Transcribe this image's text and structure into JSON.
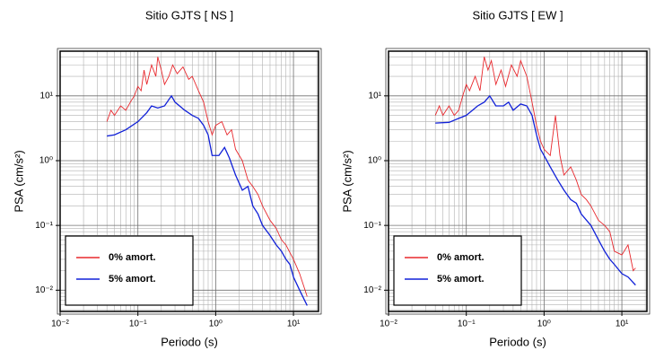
{
  "chart_data": [
    {
      "type": "line",
      "title": "Sitio GJTS [ NS ]",
      "xlabel": "Periodo (s)",
      "ylabel": "PSA (cm/s²)",
      "xscale": "log",
      "yscale": "log",
      "grid": true,
      "legend": "lower left",
      "xlim": [
        0.01,
        21
      ],
      "ylim": [
        0.0047,
        49
      ],
      "xticks": [
        {
          "value": 0.01,
          "label": "10⁻²"
        },
        {
          "value": 0.1,
          "label": "10⁻¹"
        },
        {
          "value": 1,
          "label": "10⁰"
        },
        {
          "value": 10,
          "label": "10¹"
        }
      ],
      "yticks": [
        {
          "value": 0.01,
          "label": "10⁻²"
        },
        {
          "value": 0.1,
          "label": "10⁻¹"
        },
        {
          "value": 1,
          "label": "10⁰"
        },
        {
          "value": 10,
          "label": "10¹"
        }
      ],
      "xminor_ticks": [
        0.02,
        0.03,
        0.04,
        0.05,
        0.06,
        0.07,
        0.08,
        0.09,
        0.2,
        0.3,
        0.4,
        0.5,
        0.6,
        0.7,
        0.8,
        0.9,
        2,
        3,
        4,
        5,
        6,
        7,
        8,
        9,
        20
      ],
      "yminor_ticks": [
        0.005,
        0.006,
        0.007,
        0.008,
        0.009,
        0.02,
        0.03,
        0.04,
        0.05,
        0.06,
        0.07,
        0.08,
        0.09,
        0.2,
        0.3,
        0.4,
        0.5,
        0.6,
        0.7,
        0.8,
        0.9,
        2,
        3,
        4,
        5,
        6,
        7,
        8,
        9,
        20,
        30,
        40
      ],
      "series": [
        {
          "name": "0% amort.",
          "color": "#e8282d",
          "x": [
            0.04,
            0.045,
            0.05,
            0.06,
            0.07,
            0.08,
            0.09,
            0.1,
            0.11,
            0.12,
            0.13,
            0.15,
            0.17,
            0.18,
            0.2,
            0.22,
            0.25,
            0.28,
            0.32,
            0.38,
            0.45,
            0.5,
            0.6,
            0.7,
            0.8,
            0.9,
            1.0,
            1.2,
            1.4,
            1.6,
            1.8,
            2.2,
            2.6,
            3,
            3.5,
            4,
            5,
            6,
            7,
            8,
            10,
            12,
            15
          ],
          "values": [
            4,
            6,
            5,
            7,
            6,
            8,
            10,
            14,
            12,
            25,
            15,
            30,
            20,
            40,
            25,
            15,
            20,
            30,
            22,
            28,
            18,
            20,
            12,
            8,
            4,
            2.5,
            3.5,
            4,
            2.5,
            3,
            1.5,
            1,
            0.5,
            0.4,
            0.3,
            0.2,
            0.12,
            0.09,
            0.06,
            0.05,
            0.03,
            0.018,
            0.008
          ]
        },
        {
          "name": "5% amort.",
          "color": "#1020d8",
          "x": [
            0.04,
            0.05,
            0.07,
            0.1,
            0.13,
            0.15,
            0.18,
            0.22,
            0.27,
            0.3,
            0.4,
            0.5,
            0.6,
            0.7,
            0.8,
            0.9,
            1.1,
            1.3,
            1.5,
            1.8,
            2.2,
            2.6,
            3,
            3.5,
            4,
            5,
            6,
            7,
            8,
            9,
            10,
            12,
            15
          ],
          "values": [
            2.4,
            2.5,
            3,
            4,
            5.5,
            7,
            6.5,
            7,
            10,
            8,
            6,
            5,
            4.5,
            3.5,
            2.5,
            1.2,
            1.2,
            1.6,
            1.1,
            0.6,
            0.35,
            0.4,
            0.2,
            0.15,
            0.1,
            0.07,
            0.05,
            0.04,
            0.03,
            0.025,
            0.016,
            0.01,
            0.0058
          ]
        }
      ]
    },
    {
      "type": "line",
      "title": "Sitio GJTS [ EW ]",
      "xlabel": "Periodo (s)",
      "ylabel": "PSA (cm/s²)",
      "xscale": "log",
      "yscale": "log",
      "grid": true,
      "legend": "lower left",
      "xlim": [
        0.01,
        21
      ],
      "ylim": [
        0.0047,
        49
      ],
      "xticks": [
        {
          "value": 0.01,
          "label": "10⁻²"
        },
        {
          "value": 0.1,
          "label": "10⁻¹"
        },
        {
          "value": 1,
          "label": "10⁰"
        },
        {
          "value": 10,
          "label": "10¹"
        }
      ],
      "yticks": [
        {
          "value": 0.01,
          "label": "10⁻²"
        },
        {
          "value": 0.1,
          "label": "10⁻¹"
        },
        {
          "value": 1,
          "label": "10⁰"
        },
        {
          "value": 10,
          "label": "10¹"
        }
      ],
      "xminor_ticks": [
        0.02,
        0.03,
        0.04,
        0.05,
        0.06,
        0.07,
        0.08,
        0.09,
        0.2,
        0.3,
        0.4,
        0.5,
        0.6,
        0.7,
        0.8,
        0.9,
        2,
        3,
        4,
        5,
        6,
        7,
        8,
        9,
        20
      ],
      "yminor_ticks": [
        0.005,
        0.006,
        0.007,
        0.008,
        0.009,
        0.02,
        0.03,
        0.04,
        0.05,
        0.06,
        0.07,
        0.08,
        0.09,
        0.2,
        0.3,
        0.4,
        0.5,
        0.6,
        0.7,
        0.8,
        0.9,
        2,
        3,
        4,
        5,
        6,
        7,
        8,
        9,
        20,
        30,
        40
      ],
      "series": [
        {
          "name": "0% amort.",
          "color": "#e8282d",
          "x": [
            0.04,
            0.045,
            0.05,
            0.06,
            0.07,
            0.08,
            0.09,
            0.1,
            0.11,
            0.13,
            0.15,
            0.17,
            0.19,
            0.21,
            0.24,
            0.28,
            0.32,
            0.38,
            0.45,
            0.5,
            0.6,
            0.7,
            0.8,
            0.9,
            1.0,
            1.2,
            1.4,
            1.6,
            1.8,
            2.2,
            2.6,
            3,
            3.5,
            4,
            5,
            6,
            7,
            8,
            10,
            12,
            14,
            15
          ],
          "values": [
            5,
            7,
            5,
            7,
            5,
            6,
            10,
            15,
            12,
            20,
            12,
            40,
            25,
            35,
            15,
            25,
            14,
            30,
            20,
            35,
            20,
            8,
            3.5,
            2,
            1.5,
            1.2,
            5,
            1.2,
            0.6,
            0.8,
            0.5,
            0.3,
            0.25,
            0.2,
            0.12,
            0.1,
            0.08,
            0.04,
            0.035,
            0.05,
            0.02,
            0.022
          ]
        },
        {
          "name": "5% amort.",
          "color": "#1020d8",
          "x": [
            0.04,
            0.06,
            0.08,
            0.1,
            0.12,
            0.14,
            0.17,
            0.2,
            0.24,
            0.3,
            0.35,
            0.4,
            0.5,
            0.6,
            0.7,
            0.8,
            0.9,
            1.0,
            1.2,
            1.5,
            1.8,
            2.2,
            2.6,
            3,
            4,
            5,
            6,
            7,
            8,
            10,
            12,
            15
          ],
          "values": [
            3.8,
            3.9,
            4.5,
            5,
            6,
            7,
            8,
            10,
            7,
            7,
            8,
            6,
            7.5,
            7,
            5,
            2.5,
            1.5,
            1.2,
            0.8,
            0.5,
            0.35,
            0.25,
            0.22,
            0.15,
            0.1,
            0.06,
            0.04,
            0.03,
            0.025,
            0.018,
            0.016,
            0.012
          ]
        }
      ]
    }
  ]
}
